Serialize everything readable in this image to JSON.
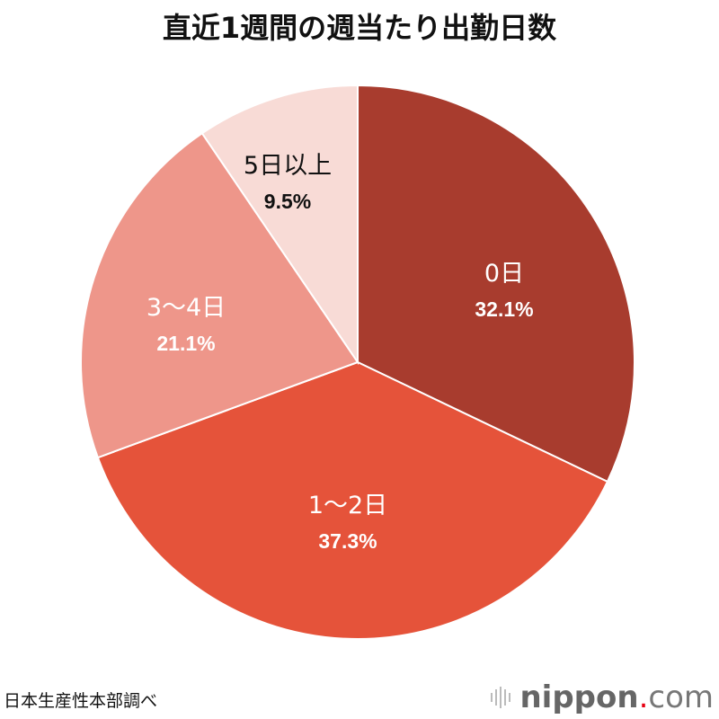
{
  "chart_data": {
    "type": "pie",
    "title": "直近1週間の週当たり出勤日数",
    "start": "top",
    "direction": "clockwise",
    "slices": [
      {
        "label": "0日",
        "value": 32.1,
        "pct_label": "32.1%",
        "color": "#a83c2e",
        "text_color": "#ffffff"
      },
      {
        "label": "1～2日",
        "value": 37.3,
        "pct_label": "37.3%",
        "color": "#e5533a",
        "text_color": "#ffffff"
      },
      {
        "label": "3～4日",
        "value": 21.1,
        "pct_label": "21.1%",
        "color": "#ee968a",
        "text_color": "#ffffff"
      },
      {
        "label": "5日以上",
        "value": 9.5,
        "pct_label": "9.5%",
        "color": "#f8dbd6",
        "text_color": "#111111"
      }
    ]
  },
  "source": "日本生産性本部調べ",
  "logo": {
    "name": "nippon",
    "dot": ".",
    "tld": "com"
  }
}
